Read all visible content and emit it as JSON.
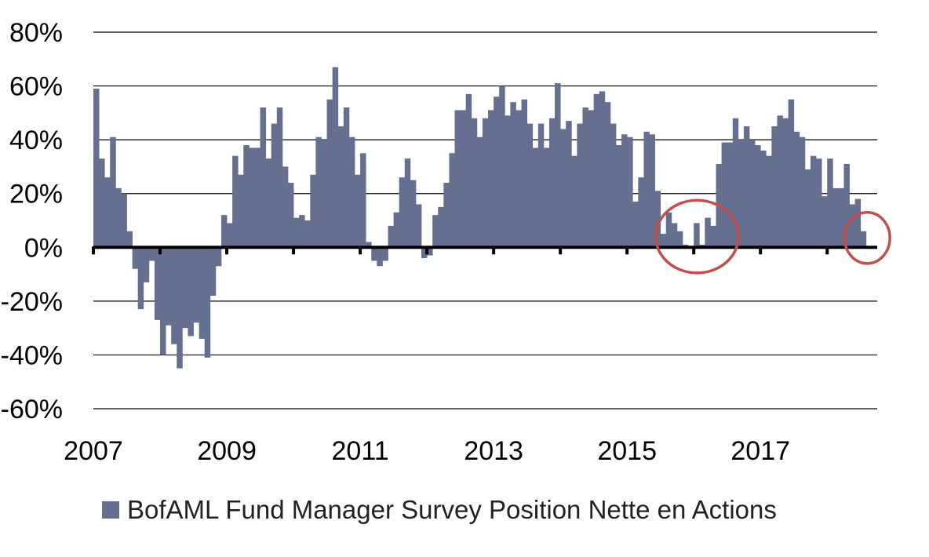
{
  "chart_data": {
    "type": "bar",
    "series_color": "#657090",
    "highlight_color": "#c0504d",
    "grid": true,
    "legend_position": "bottom-left",
    "x_start": 2007.0,
    "x_step": 0.08333,
    "xlim": [
      2007,
      2018.75
    ],
    "ylim": [
      -60,
      80
    ],
    "y_ticks": [
      "80%",
      "60%",
      "40%",
      "20%",
      "0%",
      "-20%",
      "-40%",
      "-60%"
    ],
    "y_tick_values": [
      80,
      60,
      40,
      20,
      0,
      -20,
      -40,
      -60
    ],
    "x_ticks": [
      "2007",
      "2009",
      "2011",
      "2013",
      "2015",
      "2017"
    ],
    "x_tick_values": [
      2007,
      2009,
      2011,
      2013,
      2015,
      2017
    ],
    "series": [
      {
        "name": "BofAML Fund Manager Survey Position Nette en Actions",
        "values": [
          59,
          33,
          26,
          41,
          22,
          20,
          6,
          -8,
          -23,
          -13,
          -5,
          -27,
          -40,
          -29,
          -36,
          -45,
          -30,
          -33,
          -28,
          -34,
          -41,
          -18,
          -7,
          12,
          9,
          34,
          27,
          38,
          37,
          37,
          52,
          33,
          46,
          52,
          30,
          24,
          11,
          12,
          10,
          27,
          41,
          40,
          55,
          67,
          45,
          52,
          41,
          27,
          35,
          2,
          -5,
          -7,
          -5,
          8,
          13,
          26,
          33,
          25,
          16,
          -4,
          -3,
          12,
          15,
          24,
          35,
          51,
          51,
          57,
          48,
          41,
          48,
          51,
          56,
          60,
          49,
          54,
          51,
          55,
          46,
          37,
          46,
          37,
          48,
          61,
          44,
          47,
          34,
          46,
          52,
          51,
          57,
          58,
          54,
          46,
          38,
          42,
          41,
          17,
          26,
          43,
          42,
          21,
          5,
          13,
          9,
          6,
          1,
          0,
          9,
          1,
          11,
          8,
          31,
          39,
          39,
          48,
          40,
          45,
          40,
          38,
          36,
          34,
          45,
          49,
          48,
          55,
          43,
          41,
          29,
          34,
          33,
          19,
          33,
          22,
          22,
          31,
          16,
          18,
          6
        ]
      }
    ],
    "annotations": [
      {
        "type": "circle",
        "x": 2016.05,
        "y": 4,
        "rx": 0.62,
        "ry": 13.5
      },
      {
        "type": "circle",
        "x": 2018.6,
        "y": 3.5,
        "rx": 0.34,
        "ry": 9.5
      }
    ]
  }
}
